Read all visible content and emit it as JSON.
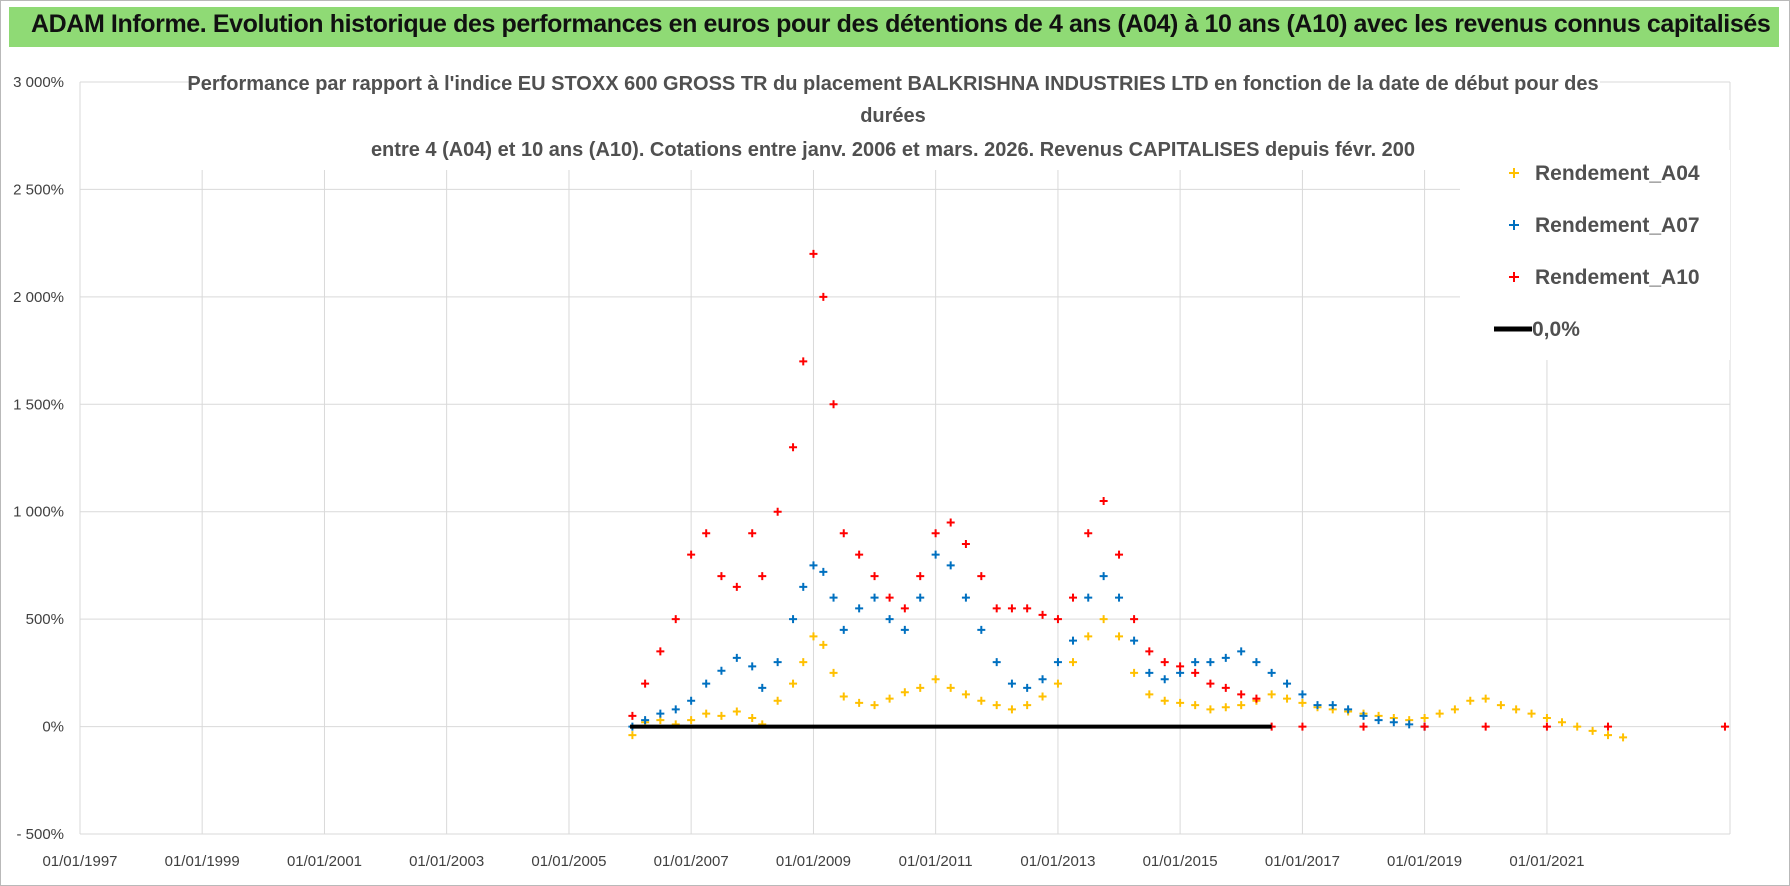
{
  "banner": {
    "title": "ADAM Informe. Evolution historique des performances en euros pour des détentions de 4 ans (A04) à 10 ans (A10) avec les revenus connus capitalisés"
  },
  "colors": {
    "banner": "#8fda75",
    "a04": "#ffc000",
    "a07": "#0070c0",
    "a10": "#ff0000",
    "zero": "#000000",
    "grid": "#d9d9d9"
  },
  "chart_data": {
    "type": "scatter",
    "title_lines": [
      "Performance par rapport à l'indice EU STOXX 600 GROSS TR  du placement BALKRISHNA INDUSTRIES LTD en fonction de la date de début pour des",
      "durées",
      "entre 4 (A04) et 10 ans (A10).  Cotations entre janv. 2006 et mars. 2026.  Revenus CAPITALISES depuis févr. 200"
    ],
    "xlabel": "",
    "ylabel": "",
    "x_ticks": [
      "01/01/1997",
      "01/01/1999",
      "01/01/2001",
      "01/01/2003",
      "01/01/2005",
      "01/01/2007",
      "01/01/2009",
      "01/01/2011",
      "01/01/2013",
      "01/01/2015",
      "01/01/2017",
      "01/01/2019",
      "01/01/2021"
    ],
    "xlim": [
      "1997-01-01",
      "2023-12-31"
    ],
    "y_ticks": [
      "- 500%",
      "0%",
      "500%",
      "1 000%",
      "1 500%",
      "2 000%",
      "2 500%",
      "3 000%"
    ],
    "ylim": [
      -500,
      3000
    ],
    "grid": "vertical-and-horizontal",
    "legend_position": "top-right",
    "series": [
      {
        "name": "Rendement_A04",
        "marker": "+",
        "points": [
          [
            "2006-01-15",
            -40
          ],
          [
            "2006-04-01",
            20
          ],
          [
            "2006-07-01",
            30
          ],
          [
            "2006-10-01",
            10
          ],
          [
            "2007-01-01",
            30
          ],
          [
            "2007-04-01",
            60
          ],
          [
            "2007-07-01",
            50
          ],
          [
            "2007-10-01",
            70
          ],
          [
            "2008-01-01",
            40
          ],
          [
            "2008-03-01",
            10
          ],
          [
            "2008-06-01",
            120
          ],
          [
            "2008-09-01",
            200
          ],
          [
            "2008-11-01",
            300
          ],
          [
            "2009-01-01",
            420
          ],
          [
            "2009-03-01",
            380
          ],
          [
            "2009-05-01",
            250
          ],
          [
            "2009-07-01",
            140
          ],
          [
            "2009-10-01",
            110
          ],
          [
            "2010-01-01",
            100
          ],
          [
            "2010-04-01",
            130
          ],
          [
            "2010-07-01",
            160
          ],
          [
            "2010-10-01",
            180
          ],
          [
            "2011-01-01",
            220
          ],
          [
            "2011-04-01",
            180
          ],
          [
            "2011-07-01",
            150
          ],
          [
            "2011-10-01",
            120
          ],
          [
            "2012-01-01",
            100
          ],
          [
            "2012-04-01",
            80
          ],
          [
            "2012-07-01",
            100
          ],
          [
            "2012-10-01",
            140
          ],
          [
            "2013-01-01",
            200
          ],
          [
            "2013-04-01",
            300
          ],
          [
            "2013-07-01",
            420
          ],
          [
            "2013-10-01",
            500
          ],
          [
            "2014-01-01",
            420
          ],
          [
            "2014-04-01",
            250
          ],
          [
            "2014-07-01",
            150
          ],
          [
            "2014-10-01",
            120
          ],
          [
            "2015-01-01",
            110
          ],
          [
            "2015-04-01",
            100
          ],
          [
            "2015-07-01",
            80
          ],
          [
            "2015-10-01",
            90
          ],
          [
            "2016-01-01",
            100
          ],
          [
            "2016-04-01",
            120
          ],
          [
            "2016-07-01",
            150
          ],
          [
            "2016-10-01",
            130
          ],
          [
            "2017-01-01",
            110
          ],
          [
            "2017-04-01",
            90
          ],
          [
            "2017-07-01",
            80
          ],
          [
            "2017-10-01",
            70
          ],
          [
            "2018-01-01",
            60
          ],
          [
            "2018-04-01",
            50
          ],
          [
            "2018-07-01",
            40
          ],
          [
            "2018-10-01",
            30
          ],
          [
            "2019-01-01",
            40
          ],
          [
            "2019-04-01",
            60
          ],
          [
            "2019-07-01",
            80
          ],
          [
            "2019-10-01",
            120
          ],
          [
            "2020-01-01",
            130
          ],
          [
            "2020-04-01",
            100
          ],
          [
            "2020-07-01",
            80
          ],
          [
            "2020-10-01",
            60
          ],
          [
            "2021-01-01",
            40
          ],
          [
            "2021-04-01",
            20
          ],
          [
            "2021-07-01",
            0
          ],
          [
            "2021-10-01",
            -20
          ],
          [
            "2022-01-01",
            -40
          ],
          [
            "2022-04-01",
            -50
          ]
        ]
      },
      {
        "name": "Rendement_A07",
        "marker": "+",
        "points": [
          [
            "2006-01-15",
            0
          ],
          [
            "2006-04-01",
            30
          ],
          [
            "2006-07-01",
            60
          ],
          [
            "2006-10-01",
            80
          ],
          [
            "2007-01-01",
            120
          ],
          [
            "2007-04-01",
            200
          ],
          [
            "2007-07-01",
            260
          ],
          [
            "2007-10-01",
            320
          ],
          [
            "2008-01-01",
            280
          ],
          [
            "2008-03-01",
            180
          ],
          [
            "2008-06-01",
            300
          ],
          [
            "2008-09-01",
            500
          ],
          [
            "2008-11-01",
            650
          ],
          [
            "2009-01-01",
            750
          ],
          [
            "2009-03-01",
            720
          ],
          [
            "2009-05-01",
            600
          ],
          [
            "2009-07-01",
            450
          ],
          [
            "2009-10-01",
            550
          ],
          [
            "2010-01-01",
            600
          ],
          [
            "2010-04-01",
            500
          ],
          [
            "2010-07-01",
            450
          ],
          [
            "2010-10-01",
            600
          ],
          [
            "2011-01-01",
            800
          ],
          [
            "2011-04-01",
            750
          ],
          [
            "2011-07-01",
            600
          ],
          [
            "2011-10-01",
            450
          ],
          [
            "2012-01-01",
            300
          ],
          [
            "2012-04-01",
            200
          ],
          [
            "2012-07-01",
            180
          ],
          [
            "2012-10-01",
            220
          ],
          [
            "2013-01-01",
            300
          ],
          [
            "2013-04-01",
            400
          ],
          [
            "2013-07-01",
            600
          ],
          [
            "2013-10-01",
            700
          ],
          [
            "2014-01-01",
            600
          ],
          [
            "2014-04-01",
            400
          ],
          [
            "2014-07-01",
            250
          ],
          [
            "2014-10-01",
            220
          ],
          [
            "2015-01-01",
            250
          ],
          [
            "2015-04-01",
            300
          ],
          [
            "2015-07-01",
            300
          ],
          [
            "2015-10-01",
            320
          ],
          [
            "2016-01-01",
            350
          ],
          [
            "2016-04-01",
            300
          ],
          [
            "2016-07-01",
            250
          ],
          [
            "2016-10-01",
            200
          ],
          [
            "2017-01-01",
            150
          ],
          [
            "2017-04-01",
            100
          ],
          [
            "2017-07-01",
            100
          ],
          [
            "2017-10-01",
            80
          ],
          [
            "2018-01-01",
            50
          ],
          [
            "2018-04-01",
            30
          ],
          [
            "2018-07-01",
            20
          ],
          [
            "2018-10-01",
            10
          ],
          [
            "2019-01-01",
            0
          ]
        ]
      },
      {
        "name": "Rendement_A10",
        "marker": "+",
        "points": [
          [
            "2006-01-15",
            50
          ],
          [
            "2006-04-01",
            200
          ],
          [
            "2006-07-01",
            350
          ],
          [
            "2006-10-01",
            500
          ],
          [
            "2007-01-01",
            800
          ],
          [
            "2007-04-01",
            900
          ],
          [
            "2007-07-01",
            700
          ],
          [
            "2007-10-01",
            650
          ],
          [
            "2008-01-01",
            900
          ],
          [
            "2008-03-01",
            700
          ],
          [
            "2008-06-01",
            1000
          ],
          [
            "2008-09-01",
            1300
          ],
          [
            "2008-11-01",
            1700
          ],
          [
            "2009-01-01",
            2200
          ],
          [
            "2009-03-01",
            2000
          ],
          [
            "2009-05-01",
            1500
          ],
          [
            "2009-07-01",
            900
          ],
          [
            "2009-10-01",
            800
          ],
          [
            "2010-01-01",
            700
          ],
          [
            "2010-04-01",
            600
          ],
          [
            "2010-07-01",
            550
          ],
          [
            "2010-10-01",
            700
          ],
          [
            "2011-01-01",
            900
          ],
          [
            "2011-04-01",
            950
          ],
          [
            "2011-07-01",
            850
          ],
          [
            "2011-10-01",
            700
          ],
          [
            "2012-01-01",
            550
          ],
          [
            "2012-04-01",
            550
          ],
          [
            "2012-07-01",
            550
          ],
          [
            "2012-10-01",
            520
          ],
          [
            "2013-01-01",
            500
          ],
          [
            "2013-04-01",
            600
          ],
          [
            "2013-07-01",
            900
          ],
          [
            "2013-10-01",
            1050
          ],
          [
            "2014-01-01",
            800
          ],
          [
            "2014-04-01",
            500
          ],
          [
            "2014-07-01",
            350
          ],
          [
            "2014-10-01",
            300
          ],
          [
            "2015-01-01",
            280
          ],
          [
            "2015-04-01",
            250
          ],
          [
            "2015-07-01",
            200
          ],
          [
            "2015-10-01",
            180
          ],
          [
            "2016-01-01",
            150
          ],
          [
            "2016-04-01",
            130
          ],
          [
            "2016-07-01",
            0
          ],
          [
            "2017-01-01",
            0
          ],
          [
            "2018-01-01",
            0
          ],
          [
            "2019-01-01",
            0
          ],
          [
            "2020-01-01",
            0
          ],
          [
            "2021-01-01",
            0
          ],
          [
            "2022-01-01",
            0
          ],
          [
            "2023-12-01",
            0
          ]
        ]
      },
      {
        "name": "0,0%",
        "marker": "line",
        "points": [
          [
            "2006-01-01",
            0
          ],
          [
            "2016-07-01",
            0
          ]
        ]
      }
    ]
  }
}
